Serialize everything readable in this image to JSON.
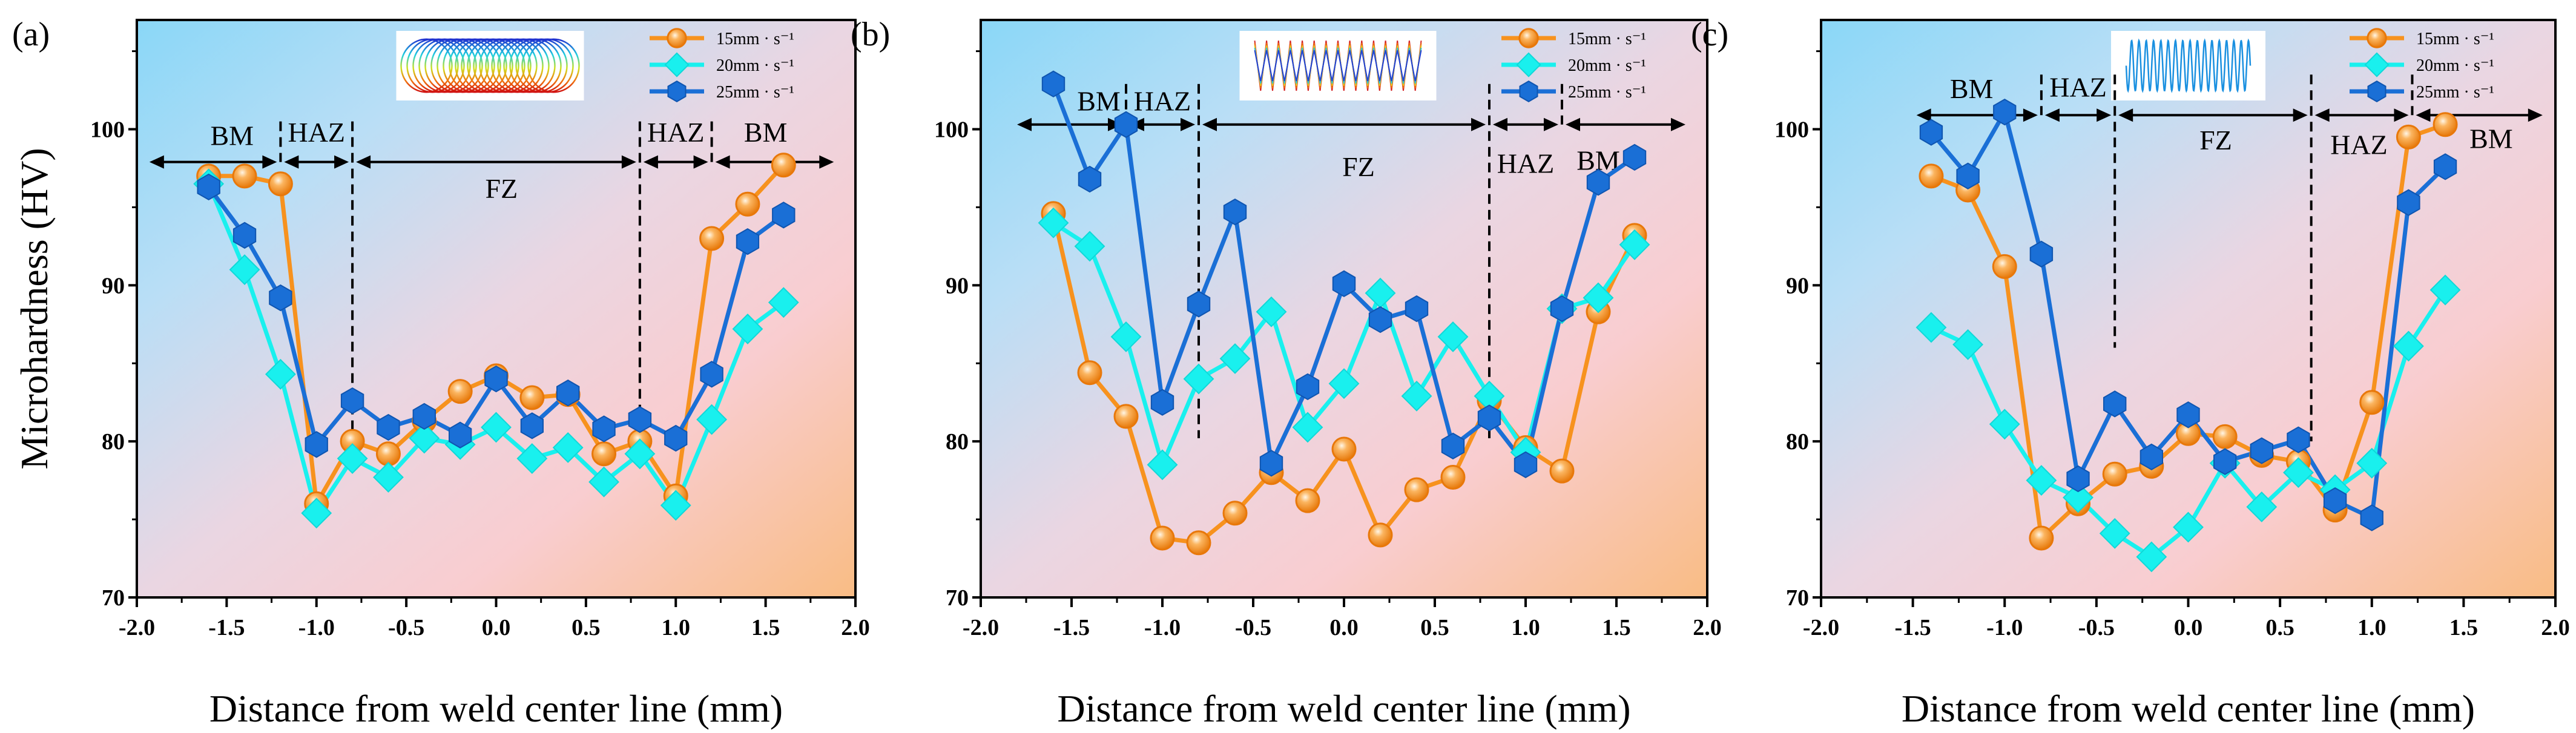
{
  "colors": {
    "s15": "#f7921e",
    "s20": "#19f0ee",
    "s25": "#1a6fd6"
  },
  "chart_data": [
    {
      "type": "line",
      "panel_label": "(a)",
      "inset_icon": "circular-oscillation-path",
      "xlabel": "Distance from weld center line (mm)",
      "ylabel": "Microhardness (HV)",
      "xlim": [
        -2.0,
        2.0
      ],
      "ylim": [
        70,
        107
      ],
      "xticks": [
        "-2.0",
        "-1.5",
        "-1.0",
        "-0.5",
        "0.0",
        "0.5",
        "1.0",
        "1.5",
        "2.0"
      ],
      "yticks": [
        "70",
        "80",
        "90",
        "100"
      ],
      "legend_position": "top-right",
      "x": [
        -1.6,
        -1.4,
        -1.2,
        -1.0,
        -0.8,
        -0.6,
        -0.4,
        -0.2,
        0.0,
        0.2,
        0.4,
        0.6,
        0.8,
        1.0,
        1.2,
        1.4,
        1.6
      ],
      "series": [
        {
          "name": "15mm · s⁻¹",
          "values": [
            97.0,
            97.0,
            96.5,
            76.0,
            80.0,
            79.2,
            81.3,
            83.2,
            84.2,
            82.8,
            83.0,
            79.2,
            80.0,
            76.5,
            93.0,
            95.2,
            97.7
          ]
        },
        {
          "name": "20mm · s⁻¹",
          "values": [
            96.5,
            91.0,
            84.3,
            75.4,
            78.9,
            77.7,
            80.2,
            79.8,
            80.9,
            78.9,
            79.6,
            77.4,
            79.2,
            75.9,
            81.4,
            87.2,
            88.9
          ]
        },
        {
          "name": "25mm · s⁻¹",
          "values": [
            96.3,
            93.2,
            89.2,
            79.8,
            82.6,
            80.9,
            81.6,
            80.4,
            84.0,
            81.0,
            83.1,
            80.8,
            81.4,
            80.2,
            84.3,
            92.8,
            94.5
          ]
        }
      ],
      "zones": {
        "arrow_y": 97.9,
        "boundaries": [
          -1.2,
          -0.8,
          0.8,
          1.2
        ],
        "range": [
          -1.95,
          1.9
        ],
        "labels": [
          {
            "text": "BM",
            "x": -1.47,
            "y": 99.0
          },
          {
            "text": "HAZ",
            "x": -1.0,
            "y": 99.2
          },
          {
            "text": "FZ",
            "x": 0.03,
            "y": 95.6
          },
          {
            "text": "HAZ",
            "x": 1.0,
            "y": 99.2
          },
          {
            "text": "BM",
            "x": 1.5,
            "y": 99.2
          }
        ]
      }
    },
    {
      "type": "line",
      "panel_label": "(b)",
      "inset_icon": "zigzag-oscillation-path",
      "xlabel": "Distance from weld center line (mm)",
      "xlim": [
        -2.0,
        2.0
      ],
      "ylim": [
        70,
        107
      ],
      "xticks": [
        "-2.0",
        "-1.5",
        "-1.0",
        "-0.5",
        "0.0",
        "0.5",
        "1.0",
        "1.5",
        "2.0"
      ],
      "yticks": [
        "70",
        "80",
        "90",
        "100"
      ],
      "legend_position": "top-right",
      "x": [
        -1.6,
        -1.4,
        -1.2,
        -1.0,
        -0.8,
        -0.6,
        -0.4,
        -0.2,
        0.0,
        0.2,
        0.4,
        0.6,
        0.8,
        1.0,
        1.2,
        1.4,
        1.6
      ],
      "series": [
        {
          "name": "15mm · s⁻¹",
          "values": [
            94.6,
            84.4,
            81.6,
            73.8,
            73.5,
            75.4,
            78.0,
            76.2,
            79.5,
            74.0,
            76.9,
            77.7,
            82.6,
            79.6,
            78.1,
            88.3,
            93.2
          ]
        },
        {
          "name": "20mm · s⁻¹",
          "values": [
            94.0,
            92.5,
            86.7,
            78.5,
            84.0,
            85.3,
            88.3,
            80.9,
            83.7,
            89.5,
            82.9,
            86.7,
            82.9,
            79.3,
            88.5,
            89.2,
            92.6
          ]
        },
        {
          "name": "25mm · s⁻¹",
          "values": [
            102.9,
            96.8,
            100.3,
            82.5,
            88.8,
            94.7,
            78.6,
            83.5,
            90.1,
            87.8,
            88.5,
            79.7,
            81.5,
            78.5,
            88.5,
            96.6,
            98.2
          ]
        }
      ],
      "zones": {
        "arrow_y": 100.3,
        "boundaries": [
          -1.2,
          -0.8,
          0.8,
          1.2
        ],
        "range": [
          -1.82,
          1.9
        ],
        "labels": [
          {
            "text": "BM",
            "x": -1.35,
            "y": 101.2
          },
          {
            "text": "HAZ",
            "x": -1.0,
            "y": 101.2
          },
          {
            "text": "FZ",
            "x": 0.08,
            "y": 97.0
          },
          {
            "text": "HAZ",
            "x": 1.0,
            "y": 97.2
          },
          {
            "text": "BM",
            "x": 1.4,
            "y": 97.4
          }
        ]
      }
    },
    {
      "type": "line",
      "panel_label": "(c)",
      "inset_icon": "sine-oscillation-path",
      "xlabel": "Distance from weld center line (mm)",
      "xlim": [
        -2.0,
        2.0
      ],
      "ylim": [
        70,
        107
      ],
      "xticks": [
        "-2.0",
        "-1.5",
        "-1.0",
        "-0.5",
        "0.0",
        "0.5",
        "1.0",
        "1.5",
        "2.0"
      ],
      "yticks": [
        "70",
        "80",
        "90",
        "100"
      ],
      "legend_position": "top-right",
      "x": [
        -1.4,
        -1.2,
        -1.0,
        -0.8,
        -0.6,
        -0.4,
        -0.2,
        0.0,
        0.2,
        0.4,
        0.6,
        0.8,
        1.0,
        1.2,
        1.4
      ],
      "series": [
        {
          "name": "15mm · s⁻¹",
          "values": [
            97.0,
            96.1,
            91.2,
            73.8,
            76.0,
            77.9,
            78.4,
            80.5,
            80.3,
            79.1,
            78.7,
            75.6,
            82.5,
            99.5,
            100.3
          ]
        },
        {
          "name": "20mm · s⁻¹",
          "values": [
            87.3,
            86.2,
            81.1,
            77.5,
            76.4,
            74.1,
            72.6,
            74.5,
            78.6,
            75.8,
            78.0,
            76.9,
            78.6,
            86.1,
            89.7
          ]
        },
        {
          "name": "25mm · s⁻¹",
          "values": [
            99.8,
            97.0,
            101.1,
            92.0,
            77.6,
            82.4,
            79.0,
            81.7,
            78.7,
            79.4,
            80.1,
            76.2,
            75.1,
            95.3,
            97.6
          ]
        }
      ],
      "zones": {
        "arrow_y": 100.9,
        "boundaries": [
          -0.8,
          -0.4,
          0.67,
          1.22
        ],
        "range": [
          -1.5,
          1.95
        ],
        "dash_bottom": [
          86,
          86,
          80,
          100
        ],
        "labels": [
          {
            "text": "BM",
            "x": -1.18,
            "y": 102.0
          },
          {
            "text": "HAZ",
            "x": -0.6,
            "y": 102.1
          },
          {
            "text": "FZ",
            "x": 0.15,
            "y": 98.7
          },
          {
            "text": "HAZ",
            "x": 0.93,
            "y": 98.4
          },
          {
            "text": "BM",
            "x": 1.65,
            "y": 98.8
          }
        ]
      }
    }
  ]
}
